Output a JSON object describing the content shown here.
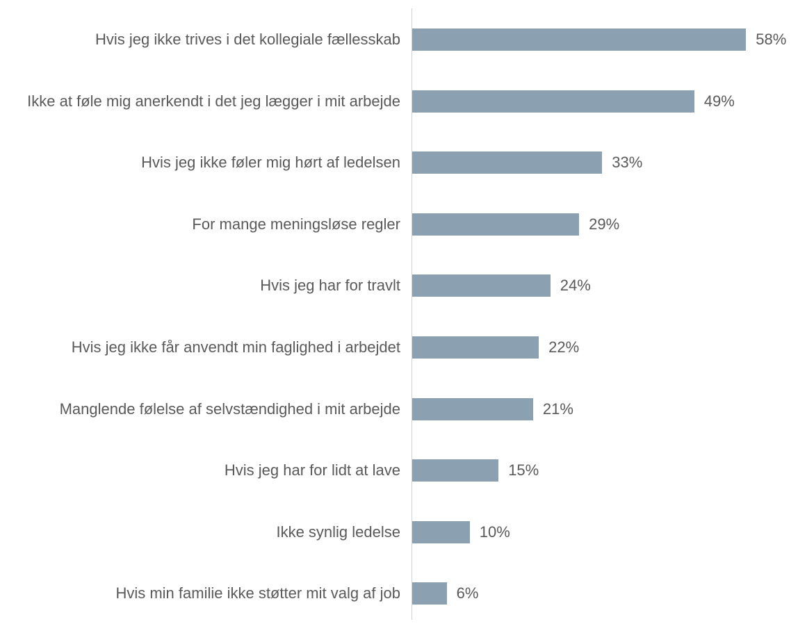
{
  "chart_data": {
    "type": "bar",
    "orientation": "horizontal",
    "color": "#8ba0b0",
    "categories": [
      "Hvis jeg ikke trives i det kollegiale fællesskab",
      "Ikke at føle mig anerkendt i det jeg lægger i mit arbejde",
      "Hvis jeg ikke føler mig hørt af ledelsen",
      "For mange meningsløse regler",
      "Hvis jeg har for travlt",
      "Hvis jeg ikke får anvendt min faglighed i arbejdet",
      "Manglende følelse af selvstændighed i mit arbejde",
      "Hvis jeg har for lidt at lave",
      "Ikke synlig ledelse",
      "Hvis min familie ikke støtter mit valg af job"
    ],
    "values": [
      58,
      49,
      33,
      29,
      24,
      22,
      21,
      15,
      10,
      6
    ],
    "value_labels": [
      "58%",
      "49%",
      "33%",
      "29%",
      "24%",
      "22%",
      "21%",
      "15%",
      "10%",
      "6%"
    ]
  }
}
